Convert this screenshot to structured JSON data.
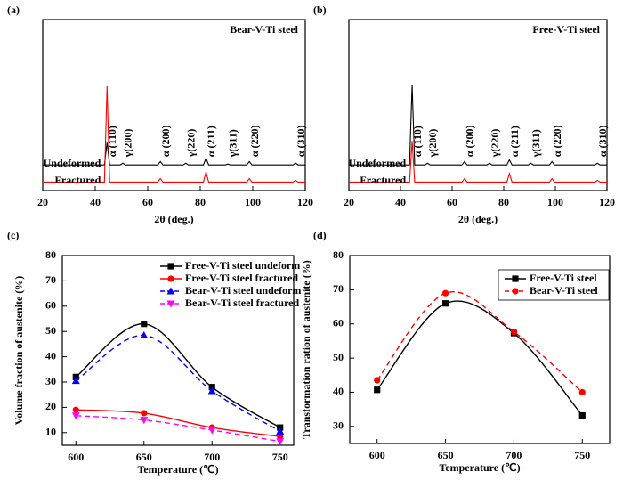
{
  "chart_data": [
    {
      "type": "xrd",
      "panel_label": "(a)",
      "title": "Bear-V-Ti steel",
      "x_label": "2θ (deg.)",
      "x": [
        20,
        43.5,
        44.5,
        45.5,
        49.5,
        50.5,
        51.5,
        63.8,
        64.8,
        65.8,
        73.5,
        74.5,
        75.5,
        81.2,
        82.2,
        83.2,
        89.5,
        90.5,
        91.5,
        97.7,
        98.7,
        99.7,
        115.3,
        116.3,
        117.3,
        120
      ],
      "series": [
        {
          "name": "Undeformed",
          "color": "#000000",
          "values": [
            15,
            15,
            28,
            15,
            15,
            16,
            15,
            15,
            17,
            15,
            15,
            16,
            15,
            15,
            19,
            15,
            15,
            15.5,
            15,
            15,
            17,
            15,
            15,
            16,
            15,
            15
          ]
        },
        {
          "name": "Fractured",
          "color": "#ff0000",
          "values": [
            5,
            5,
            61,
            5,
            5,
            5,
            5,
            5,
            7,
            5,
            5,
            5,
            5,
            5,
            11,
            5,
            5,
            5,
            5,
            5,
            7,
            5,
            5,
            6,
            5,
            5
          ]
        }
      ],
      "annotations": [
        {
          "text": "α (110)",
          "x": 44.5
        },
        {
          "text": "γ(200)",
          "x": 50.5
        },
        {
          "text": "α (200)",
          "x": 64.8
        },
        {
          "text": "γ(220)",
          "x": 74.5
        },
        {
          "text": "α (211)",
          "x": 82.2
        },
        {
          "text": "γ(311)",
          "x": 90.5
        },
        {
          "text": "α (220)",
          "x": 98.7
        },
        {
          "text": "α (310)",
          "x": 116.3
        }
      ],
      "xlim": [
        20,
        120
      ],
      "xticks": [
        20,
        40,
        60,
        80,
        100,
        120
      ],
      "ylim": [
        0,
        100
      ]
    },
    {
      "type": "xrd",
      "panel_label": "(b)",
      "title": "Free-V-Ti steel",
      "x_label": "2θ (deg.)",
      "x": [
        20,
        43.5,
        44.5,
        45.5,
        49.5,
        50.5,
        51.5,
        63.8,
        64.8,
        65.8,
        73.5,
        74.5,
        75.5,
        81.2,
        82.2,
        83.2,
        89.5,
        90.5,
        91.5,
        97.7,
        98.7,
        99.7,
        115.3,
        116.3,
        117.3,
        120
      ],
      "series": [
        {
          "name": "Undeformed",
          "color": "#000000",
          "values": [
            15,
            15,
            62,
            15,
            15,
            16,
            15,
            15,
            17,
            15,
            15,
            16,
            15,
            15,
            18,
            15,
            15,
            16,
            15,
            15,
            17,
            15,
            15,
            16,
            15,
            15
          ]
        },
        {
          "name": "Fractured",
          "color": "#ff0000",
          "values": [
            5,
            5,
            29,
            5,
            5,
            5,
            5,
            5,
            7,
            5,
            5,
            5,
            5,
            5,
            10,
            5,
            5,
            5,
            5,
            5,
            7,
            5,
            5,
            6,
            5,
            5
          ]
        }
      ],
      "annotations": [
        {
          "text": "α (110)",
          "x": 44.5
        },
        {
          "text": "γ(200)",
          "x": 50.5
        },
        {
          "text": "α (200)",
          "x": 64.8
        },
        {
          "text": "γ(220)",
          "x": 74.5
        },
        {
          "text": "α (211)",
          "x": 82.2
        },
        {
          "text": "γ(311)",
          "x": 90.5
        },
        {
          "text": "α (220)",
          "x": 98.7
        },
        {
          "text": "α (310)",
          "x": 116.3
        }
      ],
      "xlim": [
        20,
        120
      ],
      "xticks": [
        20,
        40,
        60,
        80,
        100,
        120
      ],
      "ylim": [
        0,
        100
      ]
    },
    {
      "type": "line",
      "panel_label": "(c)",
      "x_label": "Temperature (℃)",
      "y_label": "Volume fraction of austenite (%)",
      "x": [
        600,
        650,
        700,
        750
      ],
      "series": [
        {
          "name": "Free-V-Ti steel undeform",
          "color": "#000000",
          "marker": "square",
          "dashed": false,
          "values": [
            32,
            53,
            28,
            12
          ]
        },
        {
          "name": "Free-V-Ti steel fractured",
          "color": "#ff0000",
          "marker": "circle",
          "dashed": false,
          "values": [
            19,
            17.7,
            12,
            8.5
          ]
        },
        {
          "name": "Bear-V-Ti steel undeform",
          "color": "#0000ff",
          "marker": "triangle-up",
          "dashed": true,
          "values": [
            30.5,
            48.5,
            26.5,
            10.5
          ]
        },
        {
          "name": "Bear-V-Ti steel fractured",
          "color": "#ff00ff",
          "marker": "triangle-down",
          "dashed": true,
          "values": [
            16.7,
            15,
            11,
            6.5
          ]
        }
      ],
      "xlim": [
        590,
        760
      ],
      "xticks": [
        600,
        650,
        700,
        750
      ],
      "ylim": [
        5,
        80
      ],
      "yticks": [
        10,
        20,
        30,
        40,
        50,
        60,
        70,
        80
      ],
      "smooth": true,
      "legend": "upper right",
      "legend_frame": false
    },
    {
      "type": "line",
      "panel_label": "(d)",
      "x_label": "Temperature (℃)",
      "y_label": "Transformation ration of austenite (%)",
      "x": [
        600,
        650,
        700,
        750
      ],
      "series": [
        {
          "name": "Free-V-Ti steel",
          "color": "#000000",
          "marker": "square",
          "dashed": false,
          "values": [
            40.7,
            66,
            57.3,
            33.2
          ]
        },
        {
          "name": "Bear-V-Ti steel",
          "color": "#ff0000",
          "marker": "circle",
          "dashed": true,
          "values": [
            43.5,
            69,
            57.7,
            40
          ]
        }
      ],
      "xlim": [
        580,
        770
      ],
      "xticks": [
        600,
        650,
        700,
        750
      ],
      "ylim": [
        25,
        80
      ],
      "yticks": [
        30,
        40,
        50,
        60,
        70,
        80
      ],
      "smooth": true,
      "legend": "upper right",
      "legend_frame": true
    }
  ]
}
